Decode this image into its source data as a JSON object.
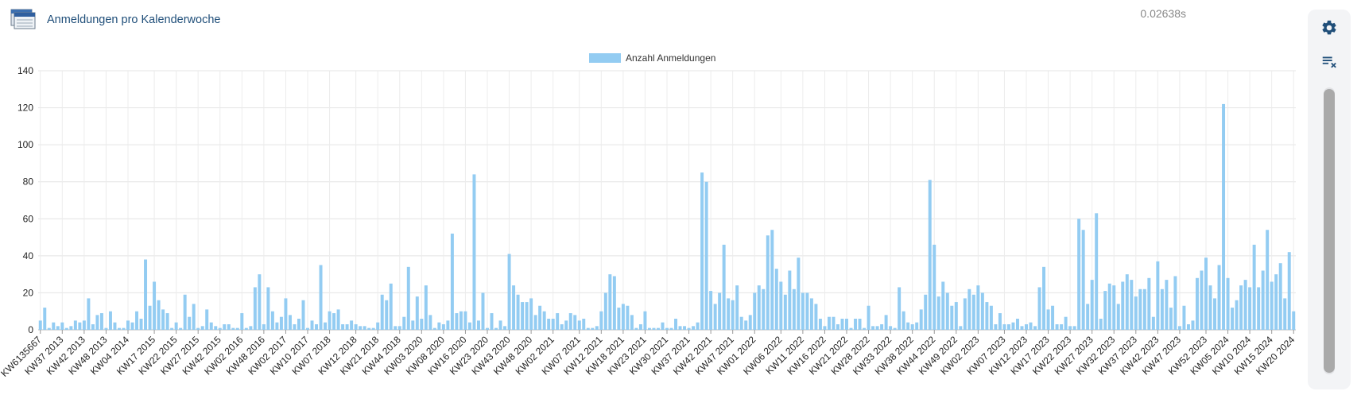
{
  "header": {
    "title": "Anmeldungen pro Kalenderwoche",
    "timing": "0.02638s",
    "icon": "database-stack-icon"
  },
  "sidebar": {
    "settings_icon": "gear-icon",
    "clear_icon": "clear-list-icon"
  },
  "colors": {
    "bar": "#93ccf2",
    "title": "#1f4e79",
    "accent": "#1f4e79"
  },
  "chart_data": {
    "type": "bar",
    "legend": "Anzahl Anmeldungen",
    "legend_position": "top-center",
    "grid": true,
    "ylim": [
      0,
      140
    ],
    "yticks": [
      0,
      20,
      40,
      60,
      80,
      100,
      120,
      140
    ],
    "tick_labels": [
      "KW6135667",
      "KW37 2013",
      "KW42 2013",
      "KW48 2013",
      "KW04 2014",
      "KW17 2015",
      "KW22 2015",
      "KW27 2015",
      "KW42 2015",
      "KW02 2016",
      "KW48 2016",
      "KW02 2017",
      "KW10 2017",
      "KW07 2018",
      "KW12 2018",
      "KW21 2018",
      "KW44 2018",
      "KW03 2020",
      "KW08 2020",
      "KW16 2020",
      "KW23 2020",
      "KW43 2020",
      "KW48 2020",
      "KW02 2021",
      "KW07 2021",
      "KW12 2021",
      "KW18 2021",
      "KW23 2021",
      "KW30 2021",
      "KW37 2021",
      "KW42 2021",
      "KW47 2021",
      "KW01 2022",
      "KW06 2022",
      "KW11 2022",
      "KW16 2022",
      "KW21 2022",
      "KW28 2022",
      "KW33 2022",
      "KW38 2022",
      "KW44 2022",
      "KW49 2022",
      "KW02 2023",
      "KW07 2023",
      "KW12 2023",
      "KW17 2023",
      "KW22 2023",
      "KW27 2023",
      "KW32 2023",
      "KW37 2023",
      "KW42 2023",
      "KW47 2023",
      "KW52 2023",
      "KW05 2024",
      "KW10 2024",
      "KW15 2024",
      "KW20 2024"
    ],
    "values": [
      5,
      12,
      1,
      4,
      2,
      4,
      1,
      2,
      5,
      4,
      5,
      17,
      3,
      8,
      9,
      1,
      10,
      4,
      1,
      1,
      5,
      4,
      10,
      6,
      38,
      13,
      26,
      16,
      11,
      9,
      1,
      4,
      1,
      19,
      7,
      14,
      1,
      2,
      11,
      4,
      2,
      1,
      3,
      3,
      1,
      1,
      9,
      1,
      2,
      23,
      30,
      3,
      23,
      10,
      4,
      7,
      17,
      8,
      3,
      6,
      16,
      1,
      5,
      3,
      35,
      4,
      10,
      9,
      11,
      3,
      3,
      5,
      3,
      2,
      2,
      1,
      1,
      4,
      19,
      16,
      25,
      2,
      2,
      7,
      34,
      5,
      18,
      6,
      24,
      8,
      1,
      4,
      3,
      5,
      52,
      9,
      10,
      10,
      4,
      84,
      5,
      20,
      1,
      9,
      1,
      5,
      2,
      41,
      24,
      19,
      15,
      15,
      17,
      8,
      13,
      10,
      6,
      6,
      9,
      3,
      5,
      9,
      8,
      5,
      6,
      1,
      1,
      2,
      10,
      20,
      30,
      29,
      12,
      14,
      13,
      8,
      1,
      3,
      10,
      1,
      1,
      1,
      4,
      1,
      1,
      6,
      2,
      2,
      1,
      2,
      4,
      85,
      80,
      21,
      14,
      20,
      46,
      17,
      16,
      24,
      7,
      5,
      8,
      20,
      24,
      22,
      51,
      54,
      33,
      26,
      19,
      32,
      22,
      39,
      20,
      20,
      17,
      14,
      6,
      2,
      7,
      7,
      3,
      6,
      6,
      1,
      6,
      6,
      1,
      13,
      2,
      2,
      3,
      8,
      2,
      1,
      23,
      10,
      4,
      3,
      4,
      11,
      19,
      81,
      46,
      18,
      26,
      20,
      13,
      15,
      2,
      17,
      22,
      19,
      24,
      20,
      15,
      13,
      3,
      9,
      3,
      3,
      4,
      6,
      2,
      3,
      4,
      2,
      23,
      34,
      11,
      13,
      3,
      3,
      7,
      2,
      2,
      60,
      54,
      14,
      27,
      63,
      6,
      21,
      25,
      24,
      14,
      26,
      30,
      27,
      18,
      22,
      22,
      28,
      7,
      37,
      22,
      27,
      12,
      29,
      2,
      13,
      3,
      5,
      28,
      32,
      39,
      24,
      17,
      35,
      122,
      28,
      12,
      16,
      24,
      27,
      23,
      46,
      23,
      32,
      54,
      26,
      30,
      36,
      17,
      42,
      10
    ]
  }
}
